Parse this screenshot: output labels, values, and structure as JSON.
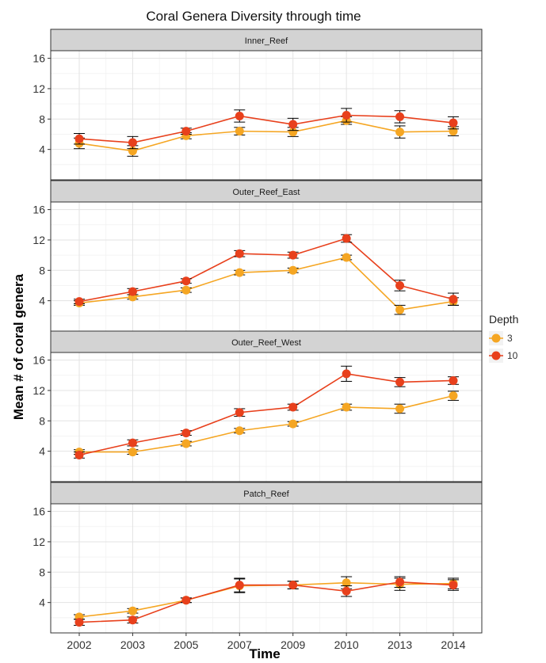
{
  "chart_data": {
    "type": "line",
    "title": "Coral Genera Diversity through time",
    "xlabel": "Time",
    "ylabel": "Mean # of coral genera",
    "categories": [
      "2002",
      "2003",
      "2005",
      "2007",
      "2009",
      "2010",
      "2013",
      "2014"
    ],
    "ylim": [
      0,
      17
    ],
    "yticks": [
      4,
      8,
      12,
      16
    ],
    "grid": true,
    "legend": {
      "title": "Depth",
      "position": "right",
      "entries": [
        {
          "label": "3",
          "color": "#F5A623"
        },
        {
          "label": "10",
          "color": "#E8401C"
        }
      ]
    },
    "panels": [
      {
        "label": "Inner_Reef",
        "series": [
          {
            "name": "3",
            "values": [
              4.8,
              3.8,
              5.8,
              6.4,
              6.3,
              7.8,
              6.3,
              6.4
            ],
            "err": [
              0.7,
              0.7,
              0.4,
              0.5,
              0.6,
              0.5,
              0.8,
              0.6
            ]
          },
          {
            "name": "10",
            "values": [
              5.4,
              4.9,
              6.4,
              8.4,
              7.3,
              8.5,
              8.3,
              7.5
            ],
            "err": [
              0.7,
              0.8,
              0.4,
              0.8,
              0.8,
              0.9,
              0.8,
              0.8
            ]
          }
        ]
      },
      {
        "label": "Outer_Reef_East",
        "series": [
          {
            "name": "3",
            "values": [
              3.7,
              4.5,
              5.4,
              7.7,
              8.0,
              9.7,
              2.8,
              3.9
            ],
            "err": [
              0.3,
              0.3,
              0.3,
              0.3,
              0.3,
              0.3,
              0.6,
              0.5
            ]
          },
          {
            "name": "10",
            "values": [
              3.9,
              5.2,
              6.6,
              10.2,
              10.0,
              12.2,
              6.0,
              4.2
            ],
            "err": [
              0.3,
              0.4,
              0.3,
              0.4,
              0.4,
              0.5,
              0.7,
              0.8
            ]
          }
        ]
      },
      {
        "label": "Outer_Reef_West",
        "series": [
          {
            "name": "3",
            "values": [
              3.9,
              3.9,
              5.0,
              6.7,
              7.6,
              9.8,
              9.6,
              11.3
            ],
            "err": [
              0.3,
              0.3,
              0.3,
              0.3,
              0.3,
              0.4,
              0.6,
              0.6
            ]
          },
          {
            "name": "10",
            "values": [
              3.5,
              5.1,
              6.4,
              9.1,
              9.8,
              14.2,
              13.1,
              13.3
            ],
            "err": [
              0.4,
              0.4,
              0.3,
              0.5,
              0.4,
              1.0,
              0.6,
              0.5
            ]
          }
        ]
      },
      {
        "label": "Patch_Reef",
        "series": [
          {
            "name": "3",
            "values": [
              2.1,
              2.9,
              4.3,
              6.2,
              6.3,
              6.6,
              6.4,
              6.5
            ],
            "err": [
              0.3,
              0.3,
              0.3,
              0.9,
              0.5,
              0.8,
              0.8,
              0.7
            ]
          },
          {
            "name": "10",
            "values": [
              1.4,
              1.7,
              4.3,
              6.3,
              6.3,
              5.5,
              6.7,
              6.3
            ],
            "err": [
              0.4,
              0.4,
              0.3,
              0.9,
              0.5,
              0.7,
              0.7,
              0.7
            ]
          }
        ]
      }
    ]
  }
}
